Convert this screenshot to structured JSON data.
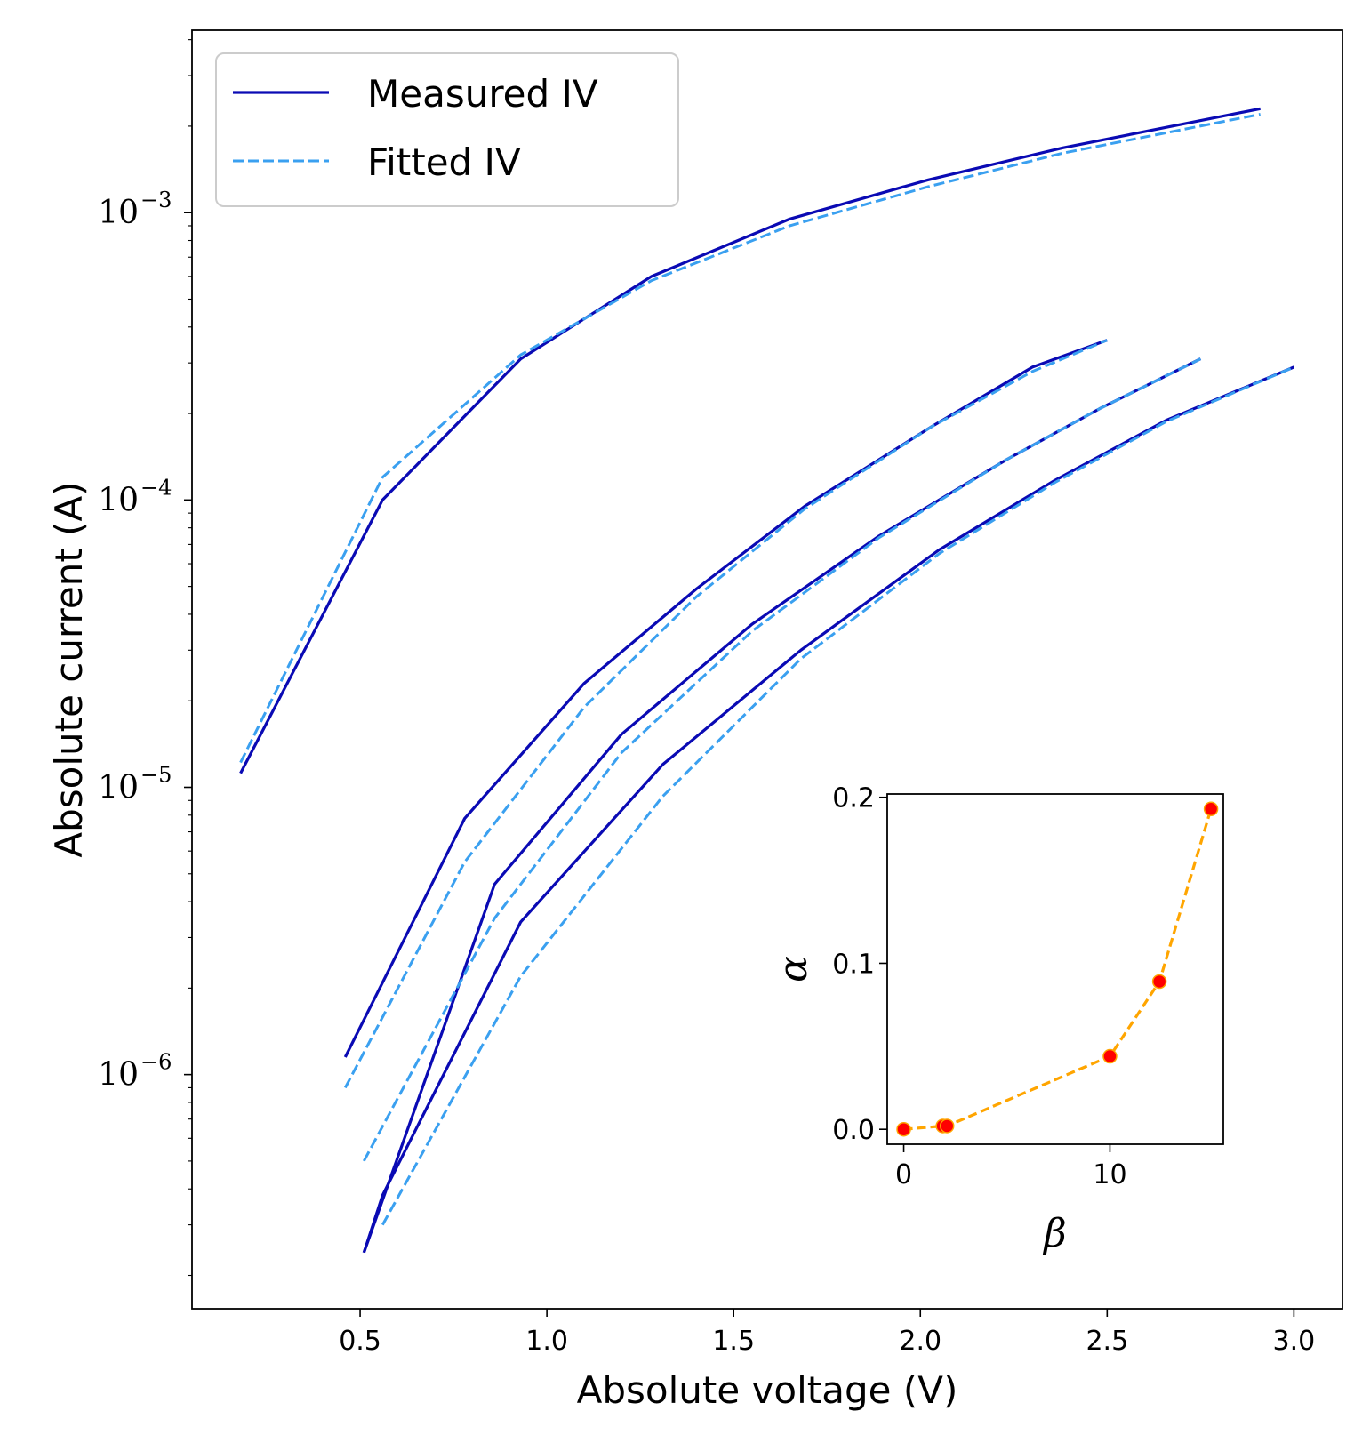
{
  "chart_data": {
    "type": "line",
    "main": {
      "xlabel": "Absolute voltage (V)",
      "ylabel": "Absolute current (A)",
      "xlim": [
        0.05,
        3.13
      ],
      "ylim_log10": [
        -6.815,
        -2.365
      ],
      "yscale": "log",
      "xticks": [
        0.5,
        1.0,
        1.5,
        2.0,
        2.5,
        3.0
      ],
      "xtick_labels": [
        "0.5",
        "1.0",
        "1.5",
        "2.0",
        "2.5",
        "3.0"
      ],
      "yticks": [
        {
          "value": 0.001,
          "base": "10",
          "exp": "−3"
        },
        {
          "value": 0.0001,
          "base": "10",
          "exp": "−4"
        },
        {
          "value": 1e-05,
          "base": "10",
          "exp": "−5"
        },
        {
          "value": 1e-06,
          "base": "10",
          "exp": "−6"
        }
      ],
      "legend": {
        "location": "top-left",
        "entries": [
          {
            "label": "Measured IV",
            "style": "solid",
            "color": "#0a0ab4"
          },
          {
            "label": "Fitted IV",
            "style": "dashed",
            "color": "#3aa0f0"
          }
        ]
      },
      "series": [
        {
          "name": "Measured IV",
          "curve": 1,
          "style": "solid",
          "color": "#0a0ab4",
          "x": [
            0.18,
            0.56,
            0.93,
            1.28,
            1.65,
            2.02,
            2.38,
            2.91
          ],
          "y": [
            1.12e-05,
            0.0001,
            0.00031,
            0.0006,
            0.00095,
            0.0013,
            0.00168,
            0.0023
          ]
        },
        {
          "name": "Fitted IV",
          "curve": 1,
          "style": "dashed",
          "color": "#3aa0f0",
          "x": [
            0.18,
            0.56,
            0.93,
            1.28,
            1.65,
            2.02,
            2.38,
            2.91
          ],
          "y": [
            1.22e-05,
            0.00012,
            0.00032,
            0.00058,
            0.0009,
            0.00123,
            0.00161,
            0.0022
          ]
        },
        {
          "name": "Measured IV",
          "curve": 2,
          "style": "solid",
          "color": "#0a0ab4",
          "x": [
            0.46,
            0.78,
            1.1,
            1.4,
            1.69,
            2.03,
            2.3,
            2.5
          ],
          "y": [
            1.15e-06,
            7.8e-06,
            2.3e-05,
            4.9e-05,
            9.5e-05,
            0.00018,
            0.00029,
            0.00036
          ]
        },
        {
          "name": "Fitted IV",
          "curve": 2,
          "style": "dashed",
          "color": "#3aa0f0",
          "x": [
            0.46,
            0.78,
            1.1,
            1.4,
            1.69,
            2.03,
            2.3,
            2.5
          ],
          "y": [
            9e-07,
            5.5e-06,
            1.9e-05,
            4.6e-05,
            9.3e-05,
            0.00018,
            0.00028,
            0.00036
          ]
        },
        {
          "name": "Measured IV",
          "curve": 3,
          "style": "solid",
          "color": "#0a0ab4",
          "x": [
            0.51,
            0.86,
            1.2,
            1.55,
            1.89,
            2.23,
            2.48,
            2.75
          ],
          "y": [
            2.4e-07,
            4.6e-06,
            1.53e-05,
            3.7e-05,
            7.5e-05,
            0.000138,
            0.000208,
            0.00031
          ]
        },
        {
          "name": "Fitted IV",
          "curve": 3,
          "style": "dashed",
          "color": "#3aa0f0",
          "x": [
            0.51,
            0.86,
            1.2,
            1.55,
            1.89,
            2.23,
            2.48,
            2.75
          ],
          "y": [
            5e-07,
            3.5e-06,
            1.32e-05,
            3.5e-05,
            7.4e-05,
            0.000138,
            0.000208,
            0.00031
          ]
        },
        {
          "name": "Measured IV",
          "curve": 4,
          "style": "solid",
          "color": "#0a0ab4",
          "x": [
            0.51,
            0.56,
            0.93,
            1.31,
            1.68,
            2.05,
            2.36,
            2.66,
            3.0
          ],
          "y": [
            2.4e-07,
            3.8e-07,
            3.4e-06,
            1.2e-05,
            3e-05,
            6.7e-05,
            0.000117,
            0.00019,
            0.00029
          ]
        },
        {
          "name": "Fitted IV",
          "curve": 4,
          "style": "dashed",
          "color": "#3aa0f0",
          "x": [
            0.56,
            0.93,
            1.31,
            1.68,
            2.05,
            2.36,
            2.66,
            3.0
          ],
          "y": [
            3e-07,
            2.2e-06,
            9.3e-06,
            2.8e-05,
            6.5e-05,
            0.000115,
            0.000188,
            0.00029
          ]
        }
      ]
    },
    "inset": {
      "type": "scatter-line",
      "xlabel": "β",
      "ylabel": "α",
      "xlim": [
        -0.8,
        15.5
      ],
      "ylim": [
        -0.009,
        0.202
      ],
      "xticks": [
        0,
        10
      ],
      "xtick_labels": [
        "0",
        "10"
      ],
      "yticks": [
        0.0,
        0.1,
        0.2
      ],
      "ytick_labels": [
        "0.0",
        "0.1",
        "0.2"
      ],
      "line_color": "#ffa500",
      "marker_color": "#ff0000",
      "points": [
        {
          "x": 0.0,
          "y": 0.0
        },
        {
          "x": 1.9,
          "y": 0.002
        },
        {
          "x": 2.1,
          "y": 0.002
        },
        {
          "x": 10.0,
          "y": 0.044
        },
        {
          "x": 12.4,
          "y": 0.089
        },
        {
          "x": 14.9,
          "y": 0.193
        }
      ]
    }
  }
}
